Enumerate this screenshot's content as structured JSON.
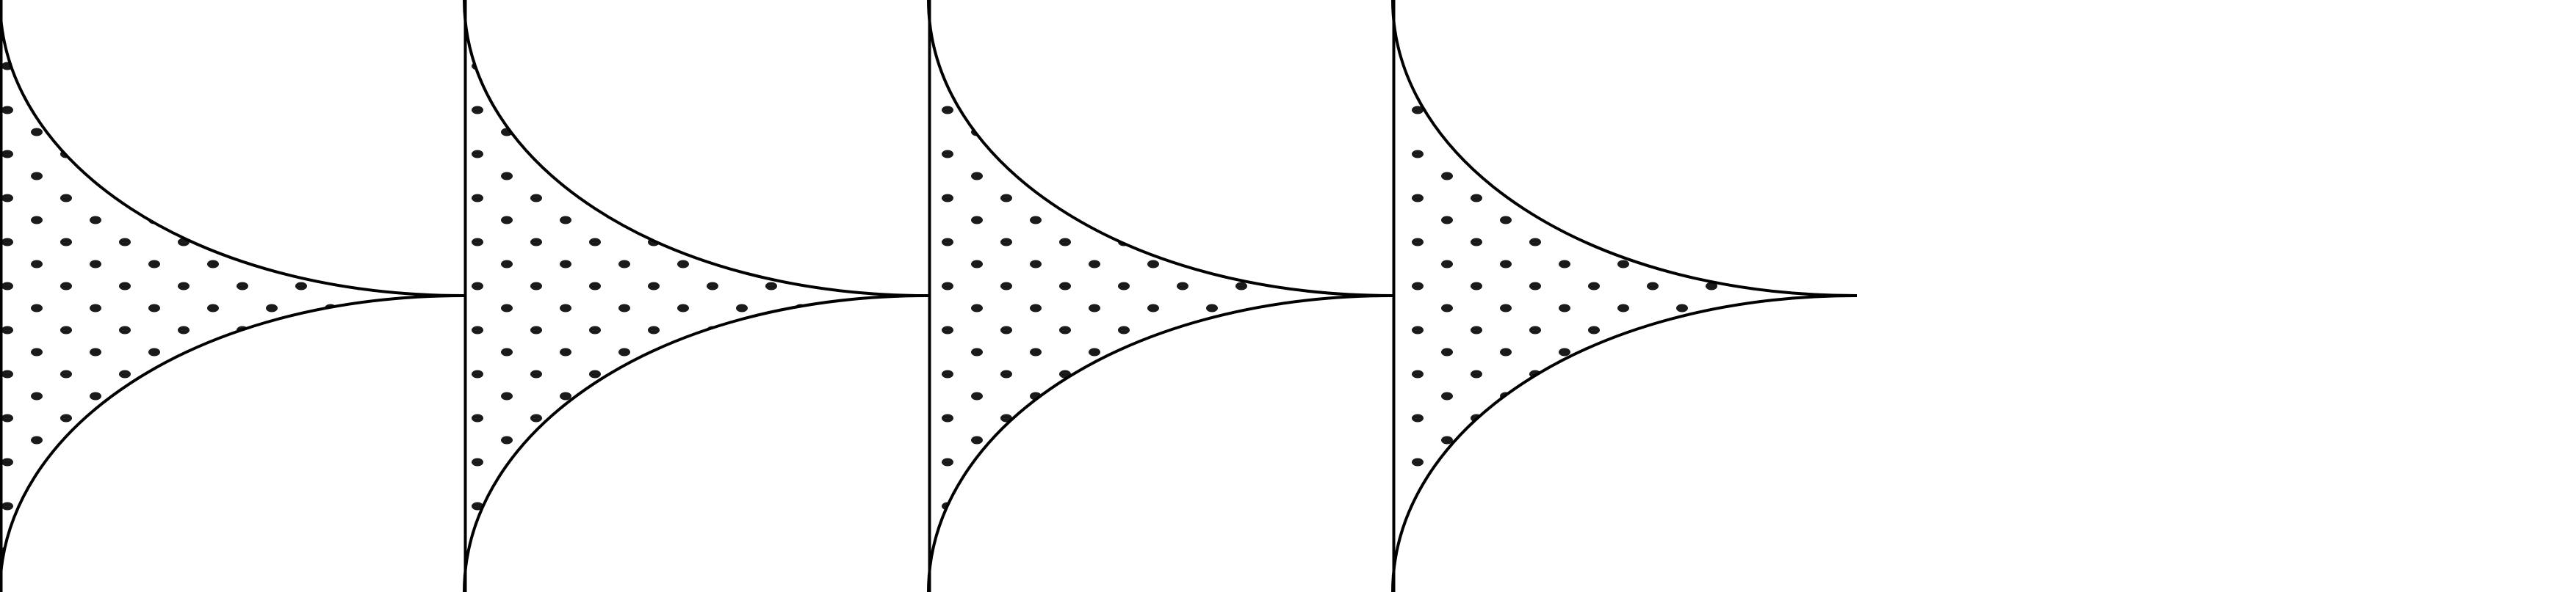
{
  "figure": {
    "panels": [
      {
        "id": "panel-1",
        "fill_pattern": "dots"
      },
      {
        "id": "panel-2",
        "fill_pattern": "dots"
      },
      {
        "id": "panel-3",
        "fill_pattern": "dots"
      },
      {
        "id": "panel-4",
        "fill_pattern": "dots"
      }
    ],
    "shape": "cusped region bounded by a vertical line and two concave arcs meeting at a right-hand point",
    "colors": {
      "stroke": "#000000",
      "dot": "#1a1a1a",
      "background": "#ffffff"
    }
  }
}
